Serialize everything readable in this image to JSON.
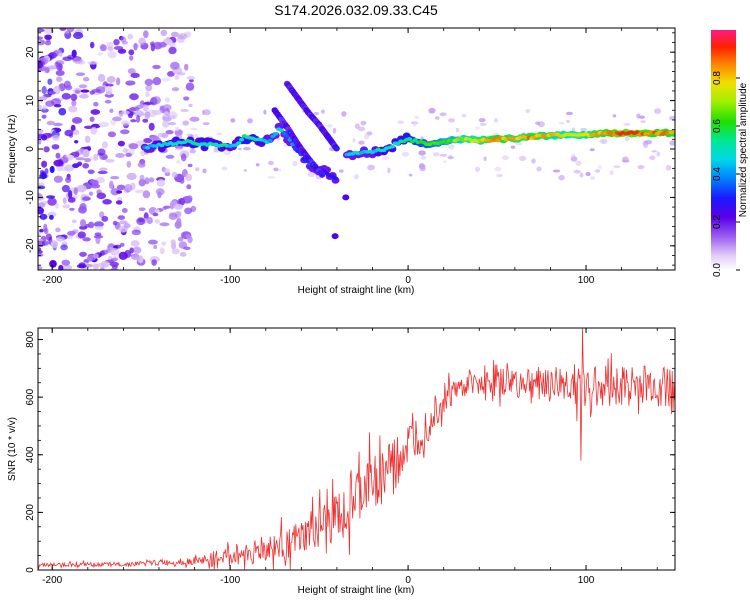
{
  "title": "S174.2026.032.09.33.C45",
  "chart_data": [
    {
      "type": "heatmap",
      "xlabel": "Height of straight line (km)",
      "ylabel": "Frequency (Hz)",
      "xlim": [
        -208,
        150
      ],
      "ylim": [
        -25,
        25
      ],
      "xticks": [
        -200,
        -100,
        0,
        100
      ],
      "yticks": [
        -20,
        -10,
        0,
        10,
        20
      ],
      "colorbar": {
        "label": "Normalized spectral amplitude",
        "range": [
          0,
          1
        ],
        "ticks": [
          0.0,
          0.2,
          0.4,
          0.6,
          0.8
        ]
      },
      "ridge": [
        {
          "x": -145,
          "y": 0.5,
          "a": 0.45
        },
        {
          "x": -135,
          "y": 1.0,
          "a": 0.5
        },
        {
          "x": -125,
          "y": 1.5,
          "a": 0.5
        },
        {
          "x": -115,
          "y": 1.0,
          "a": 0.5
        },
        {
          "x": -105,
          "y": 0.8,
          "a": 0.5
        },
        {
          "x": -98,
          "y": 0.5,
          "a": 0.45
        },
        {
          "x": -92,
          "y": 2.5,
          "a": 0.55
        },
        {
          "x": -85,
          "y": 2.0,
          "a": 0.5
        },
        {
          "x": -78,
          "y": 1.5,
          "a": 0.45
        },
        {
          "x": -72,
          "y": 4.5,
          "a": 0.45
        },
        {
          "x": -64,
          "y": 0.5,
          "a": 0.35
        },
        {
          "x": -56,
          "y": -3.0,
          "a": 0.35
        },
        {
          "x": -48,
          "y": -4.5,
          "a": 0.3
        },
        {
          "x": -40,
          "y": -6.0,
          "a": 0.3
        },
        {
          "x": -35,
          "y": -10.0,
          "a": 0.3
        },
        {
          "x": -38,
          "y": -1.0,
          "a": 0.4
        },
        {
          "x": -30,
          "y": -1.0,
          "a": 0.45
        },
        {
          "x": -20,
          "y": -0.5,
          "a": 0.45
        },
        {
          "x": -12,
          "y": 0.0,
          "a": 0.5
        },
        {
          "x": -5,
          "y": 1.5,
          "a": 0.5
        },
        {
          "x": 0,
          "y": 2.0,
          "a": 0.55
        },
        {
          "x": 10,
          "y": 1.0,
          "a": 0.6
        },
        {
          "x": 20,
          "y": 1.5,
          "a": 0.65
        },
        {
          "x": 30,
          "y": 2.0,
          "a": 0.7
        },
        {
          "x": 40,
          "y": 1.8,
          "a": 0.8
        },
        {
          "x": 50,
          "y": 2.0,
          "a": 0.85
        },
        {
          "x": 60,
          "y": 2.2,
          "a": 0.8
        },
        {
          "x": 70,
          "y": 2.5,
          "a": 0.85
        },
        {
          "x": 80,
          "y": 2.8,
          "a": 0.8
        },
        {
          "x": 90,
          "y": 3.0,
          "a": 0.75
        },
        {
          "x": 100,
          "y": 3.0,
          "a": 0.8
        },
        {
          "x": 110,
          "y": 3.2,
          "a": 0.85
        },
        {
          "x": 120,
          "y": 3.2,
          "a": 0.9
        },
        {
          "x": 130,
          "y": 3.3,
          "a": 0.9
        },
        {
          "x": 140,
          "y": 3.3,
          "a": 0.85
        },
        {
          "x": 150,
          "y": 3.3,
          "a": 0.85
        }
      ],
      "branch_upper": [
        {
          "x": -68,
          "y": 13.5
        },
        {
          "x": -62,
          "y": 10.5
        },
        {
          "x": -56,
          "y": 7.5
        },
        {
          "x": -50,
          "y": 5.0
        },
        {
          "x": -45,
          "y": 2.5
        },
        {
          "x": -40,
          "y": 0.0
        }
      ],
      "branch_lower": [
        {
          "x": -75,
          "y": 8.0
        },
        {
          "x": -68,
          "y": 4.5
        },
        {
          "x": -62,
          "y": 1.0
        },
        {
          "x": -56,
          "y": -2.0
        },
        {
          "x": -48,
          "y": -5.5
        }
      ],
      "noise_region": {
        "x": [
          -208,
          -120
        ],
        "y": [
          -25,
          25
        ],
        "density": "high"
      }
    },
    {
      "type": "line",
      "xlabel": "Height of straight line (km)",
      "ylabel": "SNR (10 * v/v)",
      "xlim": [
        -208,
        150
      ],
      "ylim": [
        0,
        840
      ],
      "xticks": [
        -200,
        -100,
        0,
        100
      ],
      "yticks": [
        0,
        200,
        400,
        600,
        800
      ],
      "color": "#f03030",
      "envelope": [
        {
          "x": -208,
          "mean": 18,
          "spread": 10
        },
        {
          "x": -160,
          "mean": 20,
          "spread": 12
        },
        {
          "x": -120,
          "mean": 30,
          "spread": 20
        },
        {
          "x": -100,
          "mean": 50,
          "spread": 60
        },
        {
          "x": -80,
          "mean": 70,
          "spread": 80
        },
        {
          "x": -60,
          "mean": 110,
          "spread": 100
        },
        {
          "x": -40,
          "mean": 180,
          "spread": 150
        },
        {
          "x": -25,
          "mean": 280,
          "spread": 170
        },
        {
          "x": -10,
          "mean": 360,
          "spread": 150
        },
        {
          "x": 0,
          "mean": 430,
          "spread": 140
        },
        {
          "x": 10,
          "mean": 500,
          "spread": 120
        },
        {
          "x": 20,
          "mean": 600,
          "spread": 90
        },
        {
          "x": 35,
          "mean": 650,
          "spread": 60
        },
        {
          "x": 60,
          "mean": 650,
          "spread": 90
        },
        {
          "x": 100,
          "mean": 640,
          "spread": 120
        },
        {
          "x": 150,
          "mean": 640,
          "spread": 120
        }
      ],
      "spikes": [
        {
          "x": 97,
          "value": 380
        },
        {
          "x": 98,
          "value": 840
        }
      ]
    }
  ]
}
